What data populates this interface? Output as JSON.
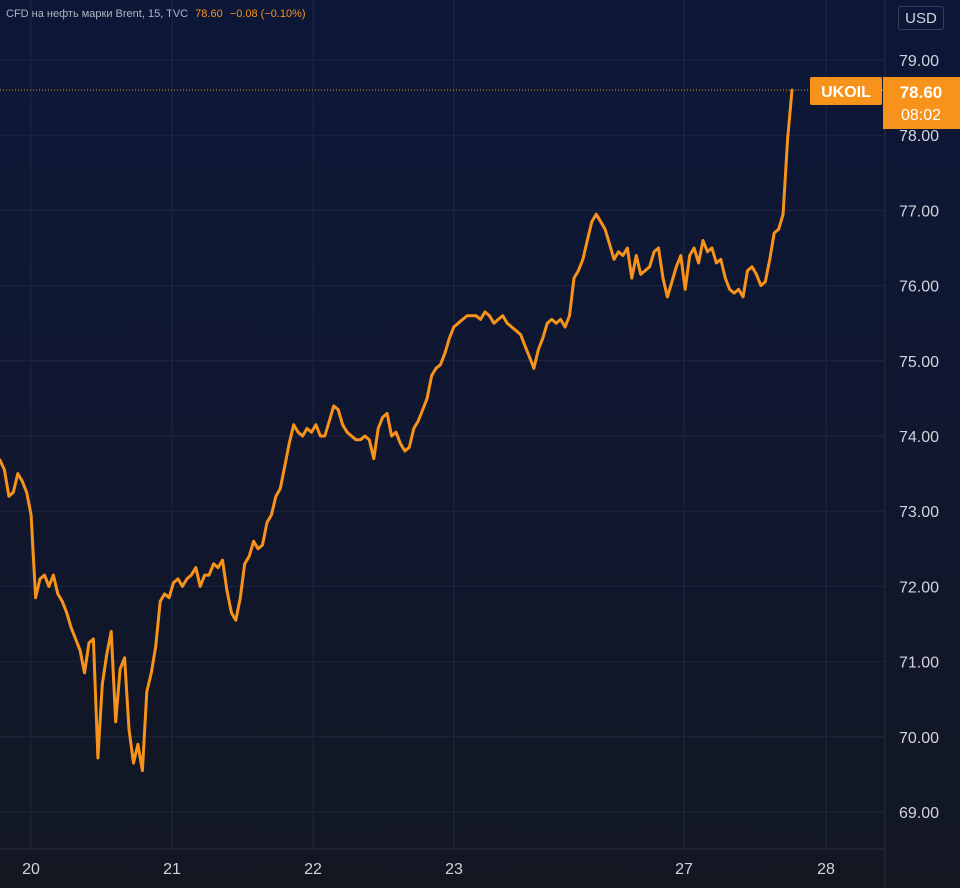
{
  "header": {
    "title": "CFD на нефть марки Brent, 15, TVC",
    "last": "78.60",
    "change": "−0.08 (−0.10%)"
  },
  "currency_button": "USD",
  "last_price": {
    "symbol": "UKOIL",
    "value": "78.60",
    "countdown": "08:02"
  },
  "colors": {
    "line": "#f7931a",
    "grid": "#1e2740",
    "text": "#d1d4dc",
    "badge": "#f7931a"
  },
  "chart_data": {
    "type": "line",
    "x_labels": [
      "20",
      "21",
      "22",
      "23",
      "27",
      "28"
    ],
    "y_ticks": [
      "79.00",
      "78.00",
      "77.00",
      "76.00",
      "75.00",
      "74.00",
      "73.00",
      "72.00",
      "71.00",
      "70.00",
      "69.00"
    ],
    "ylim": [
      68.6,
      79.6
    ],
    "grid": true,
    "series": [
      {
        "values": [
          73.68,
          73.55,
          73.2,
          73.25,
          73.5,
          73.4,
          73.25,
          72.95,
          71.85,
          72.1,
          72.15,
          72.0,
          72.15,
          71.9,
          71.8,
          71.65,
          71.45,
          71.3,
          71.15,
          70.85,
          71.25,
          71.3,
          69.72,
          70.7,
          71.1,
          71.4,
          70.2,
          70.9,
          71.05,
          70.1,
          69.65,
          69.9,
          69.55,
          70.6,
          70.85,
          71.2,
          71.8,
          71.9,
          71.85,
          72.05,
          72.1,
          72.0,
          72.1,
          72.15,
          72.25,
          72.0,
          72.15,
          72.15,
          72.3,
          72.25,
          72.35,
          71.95,
          71.65,
          71.55,
          71.85,
          72.3,
          72.4,
          72.6,
          72.5,
          72.55,
          72.85,
          72.95,
          73.2,
          73.3,
          73.6,
          73.9,
          74.15,
          74.05,
          74.0,
          74.1,
          74.05,
          74.15,
          74.0,
          74.0,
          74.2,
          74.4,
          74.35,
          74.15,
          74.05,
          74.0,
          73.95,
          73.95,
          74.0,
          73.95,
          73.7,
          74.1,
          74.25,
          74.3,
          74.0,
          74.05,
          73.9,
          73.8,
          73.85,
          74.1,
          74.2,
          74.35,
          74.5,
          74.8,
          74.9,
          74.95,
          75.1,
          75.3,
          75.45,
          75.5,
          75.55,
          75.6,
          75.6,
          75.6,
          75.55,
          75.65,
          75.6,
          75.5,
          75.55,
          75.6,
          75.5,
          75.45,
          75.4,
          75.35,
          75.2,
          75.05,
          74.9,
          75.15,
          75.3,
          75.5,
          75.55,
          75.5,
          75.55,
          75.45,
          75.6,
          76.1,
          76.2,
          76.35,
          76.6,
          76.85,
          76.95,
          76.85,
          76.75,
          76.55,
          76.35,
          76.45,
          76.4,
          76.5,
          76.1,
          76.4,
          76.15,
          76.2,
          76.25,
          76.45,
          76.5,
          76.1,
          75.85,
          76.05,
          76.25,
          76.4,
          75.95,
          76.4,
          76.5,
          76.3,
          76.6,
          76.45,
          76.5,
          76.3,
          76.35,
          76.1,
          75.95,
          75.9,
          75.95,
          75.85,
          76.2,
          76.25,
          76.15,
          76.0,
          76.05,
          76.35,
          76.7,
          76.75,
          76.95,
          77.95,
          78.6
        ],
        "color": "#f7931a"
      }
    ]
  }
}
